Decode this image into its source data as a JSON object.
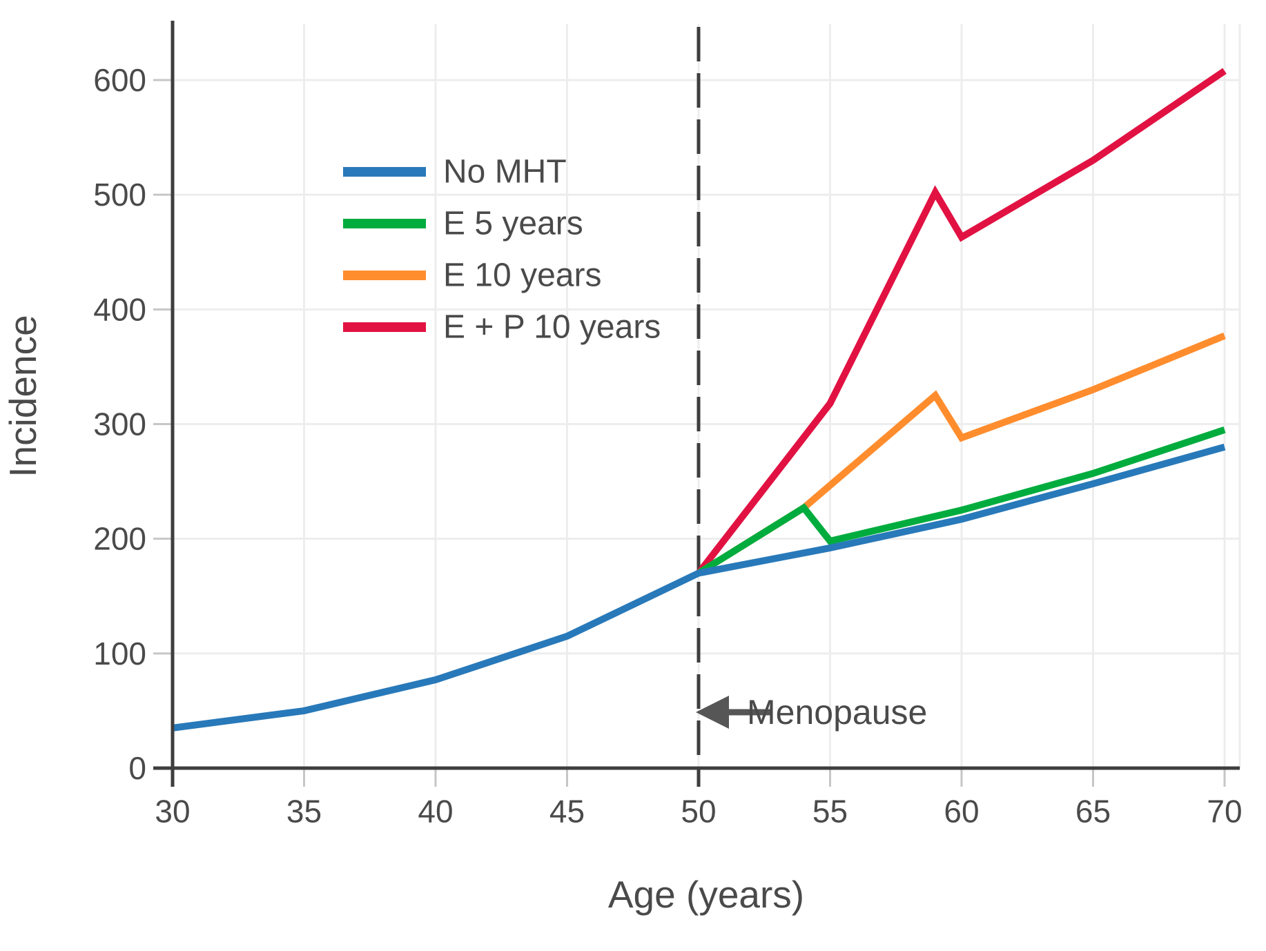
{
  "chart_data": {
    "type": "line",
    "title": "",
    "xlabel": "Age (years)",
    "ylabel": "Incidence",
    "x_ticks": [
      30,
      35,
      40,
      45,
      50,
      55,
      60,
      65,
      70
    ],
    "y_ticks": [
      0,
      100,
      200,
      300,
      400,
      500,
      600
    ],
    "xlim": [
      30,
      70.6
    ],
    "ylim": [
      0,
      650
    ],
    "grid": true,
    "legend_position": "inside-upper-left",
    "series": [
      {
        "name": "No MHT",
        "color": "#2879B9",
        "x": [
          30,
          35,
          40,
          45,
          50,
          55,
          60,
          65,
          70
        ],
        "y": [
          35,
          50,
          77,
          115,
          170,
          192,
          217,
          248,
          280
        ]
      },
      {
        "name": "E 5 years",
        "color": "#00AC3E",
        "x": [
          50,
          54,
          55,
          60,
          65,
          70
        ],
        "y": [
          170,
          227,
          198,
          225,
          257,
          295
        ]
      },
      {
        "name": "E 10 years",
        "color": "#FF8D2E",
        "x": [
          50,
          54,
          59,
          60,
          65,
          70
        ],
        "y": [
          170,
          227,
          325,
          288,
          330,
          377
        ]
      },
      {
        "name": "E + P 10 years",
        "color": "#E11242",
        "x": [
          50,
          55,
          59,
          60,
          65,
          70
        ],
        "y": [
          170,
          318,
          502,
          463,
          530,
          608
        ]
      }
    ],
    "annotation": {
      "label": "Menopause",
      "arrow_direction": "left",
      "at_age": 50,
      "at_value": 49,
      "reference_line": {
        "x": 50,
        "style": "dashed",
        "color": "#3e3e3e"
      }
    },
    "style": {
      "gridline_color": "#ededed",
      "spine_color": "#3e3e3e",
      "tick_stub_color": "#c6c6c6",
      "dark_tick_color": "#3e3e3e",
      "line_width": 10,
      "background": "#ffffff"
    }
  }
}
